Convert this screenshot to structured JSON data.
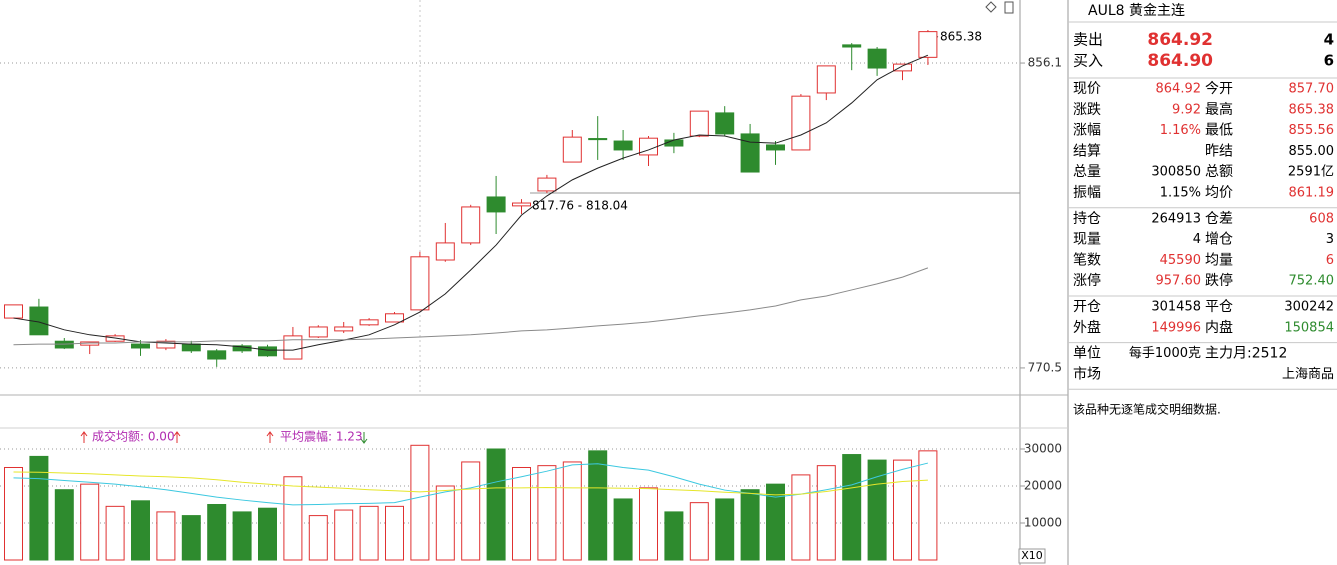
{
  "chart_data": [
    {
      "type": "candlestick",
      "open": [
        784.5,
        787.6,
        778.0,
        776.9,
        778.0,
        777.2,
        776.1,
        777.2,
        775.3,
        776.7,
        776.4,
        773.0,
        779.2,
        780.9,
        782.6,
        783.4,
        786.8,
        800.8,
        805.6,
        818.5,
        816.0,
        820.2,
        828.3,
        834.9,
        834.2,
        830.3,
        834.5,
        835.6,
        842.1,
        836.2,
        833.1,
        831.7,
        847.7,
        861.2,
        860.0,
        853.9,
        857.7
      ],
      "high": [
        788.2,
        789.9,
        778.9,
        777.8,
        780.0,
        778.3,
        778.6,
        778.1,
        775.8,
        777.2,
        777.0,
        782.0,
        782.5,
        783.4,
        784.5,
        786.2,
        803.1,
        811.2,
        816.3,
        824.4,
        817.9,
        824.7,
        837.3,
        841.2,
        837.3,
        835.6,
        836.5,
        842.6,
        844.0,
        839.0,
        834.2,
        847.4,
        855.3,
        861.7,
        860.6,
        855.8,
        865.38
      ],
      "low": [
        784.5,
        779.8,
        775.8,
        774.4,
        777.8,
        773.9,
        775.5,
        774.7,
        770.8,
        774.7,
        773.6,
        773.0,
        778.9,
        780.3,
        782.3,
        783.4,
        786.8,
        800.3,
        805.0,
        808.1,
        813.7,
        819.6,
        828.3,
        828.9,
        828.9,
        827.2,
        830.8,
        835.3,
        835.6,
        825.5,
        827.5,
        831.7,
        845.7,
        854.1,
        852.5,
        851.3,
        855.56
      ],
      "close": [
        788.2,
        779.8,
        776.1,
        777.8,
        779.5,
        776.1,
        778.0,
        775.3,
        773.0,
        775.3,
        773.9,
        779.5,
        782.0,
        782.0,
        784.0,
        785.7,
        801.7,
        805.6,
        815.7,
        814.3,
        816.8,
        823.8,
        835.3,
        834.6,
        831.7,
        835.0,
        832.8,
        842.6,
        836.2,
        825.5,
        831.7,
        846.8,
        855.3,
        860.6,
        854.7,
        855.8,
        864.92
      ],
      "up_color": "#e03131",
      "down_color": "#2e8b2e",
      "lines": [
        {
          "color": "#222222",
          "values": [
            784.5,
            783.4,
            781.2,
            779.8,
            778.9,
            777.8,
            777.5,
            777.2,
            777.0,
            776.4,
            775.5,
            775.5,
            777.0,
            778.3,
            779.8,
            782.6,
            786.2,
            791.3,
            798.0,
            805.0,
            813.4,
            818.8,
            823.3,
            826.6,
            829.4,
            831.7,
            834.5,
            835.9,
            835.6,
            833.9,
            833.6,
            835.9,
            839.3,
            844.9,
            851.4,
            855.3,
            858.3
          ]
        },
        {
          "color": "#8a8a8a",
          "values": [
            777.0,
            777.2,
            777.2,
            777.5,
            777.5,
            777.8,
            777.8,
            777.8,
            778.1,
            778.1,
            778.1,
            778.4,
            778.4,
            778.4,
            778.6,
            778.9,
            779.2,
            779.5,
            779.8,
            780.3,
            780.9,
            781.2,
            781.7,
            782.3,
            782.8,
            783.4,
            784.2,
            785.1,
            785.9,
            786.8,
            787.9,
            789.6,
            790.7,
            792.4,
            794.1,
            796.0,
            798.6
          ]
        }
      ],
      "ylim": [
        762.9,
        873.8
      ],
      "yticks": [
        770.5,
        856.1
      ],
      "annotations": [
        "865.38",
        "817.76 - 818.04"
      ]
    },
    {
      "type": "bar",
      "values": [
        25000,
        28000,
        19000,
        20500,
        14500,
        16000,
        13000,
        12000,
        15000,
        13000,
        14000,
        22500,
        12000,
        13500,
        14500,
        14500,
        31000,
        20000,
        26500,
        30000,
        25000,
        25500,
        26500,
        29500,
        16500,
        19500,
        13000,
        15500,
        16500,
        19000,
        20500,
        23000,
        25500,
        28500,
        27000,
        27000,
        29500
      ],
      "lines": [
        {
          "color": "#3cc8e0",
          "values": [
            22200,
            22000,
            21500,
            21000,
            20500,
            19800,
            19000,
            18000,
            17000,
            16200,
            15500,
            14900,
            15000,
            15200,
            15300,
            15500,
            17000,
            18400,
            19500,
            21100,
            22500,
            24000,
            25700,
            26000,
            25000,
            24300,
            22500,
            20500,
            18900,
            18000,
            17000,
            17800,
            19000,
            20300,
            22500,
            24500,
            26200
          ]
        },
        {
          "color": "#e6e62a",
          "values": [
            23800,
            23700,
            23500,
            23300,
            23000,
            22700,
            22500,
            22200,
            21700,
            21000,
            20500,
            20000,
            19700,
            19400,
            19000,
            18700,
            18400,
            18800,
            19200,
            19500,
            19500,
            19600,
            19500,
            19500,
            19400,
            19300,
            19000,
            18700,
            18300,
            18000,
            17600,
            17800,
            18500,
            19500,
            20500,
            21200,
            21600
          ]
        }
      ],
      "ylim": [
        0,
        35135
      ],
      "yticks": [
        10000,
        20000,
        30000
      ],
      "annotations": [
        "成交均额: 0.00",
        "平均震幅: 1.23"
      ],
      "scale_label": "X10"
    }
  ],
  "quote": {
    "title": "AUL8 黄金主连",
    "book": [
      {
        "label": "卖出",
        "price": "864.92",
        "qty": "4"
      },
      {
        "label": "买入",
        "price": "864.90",
        "qty": "6"
      }
    ],
    "sections": [
      [
        {
          "l": "现价",
          "v": "864.92",
          "c": "#e03131",
          "l2": "今开",
          "v2": "857.70",
          "c2": "#e03131"
        },
        {
          "l": "涨跌",
          "v": "9.92",
          "c": "#e03131",
          "l2": "最高",
          "v2": "865.38",
          "c2": "#e03131"
        },
        {
          "l": "涨幅",
          "v": "1.16%",
          "c": "#e03131",
          "l2": "最低",
          "v2": "855.56",
          "c2": "#e03131"
        },
        {
          "l": "结算",
          "v": "",
          "c": "#000000",
          "l2": "昨结",
          "v2": "855.00",
          "c2": "#000000"
        },
        {
          "l": "总量",
          "v": "300850",
          "c": "#000000",
          "l2": "总额",
          "v2": "2591亿",
          "c2": "#000000"
        },
        {
          "l": "振幅",
          "v": "1.15%",
          "c": "#000000",
          "l2": "均价",
          "v2": "861.19",
          "c2": "#e03131"
        }
      ],
      [
        {
          "l": "持仓",
          "v": "264913",
          "c": "#000000",
          "l2": "仓差",
          "v2": "608",
          "c2": "#e03131"
        },
        {
          "l": "现量",
          "v": "4",
          "c": "#000000",
          "l2": "增仓",
          "v2": "3",
          "c2": "#000000"
        },
        {
          "l": "笔数",
          "v": "45590",
          "c": "#e03131",
          "l2": "均量",
          "v2": "6",
          "c2": "#e03131"
        },
        {
          "l": "涨停",
          "v": "957.60",
          "c": "#e03131",
          "l2": "跌停",
          "v2": "752.40",
          "c2": "#2e8b2e"
        }
      ],
      [
        {
          "l": "开仓",
          "v": "301458",
          "c": "#000000",
          "l2": "平仓",
          "v2": "300242",
          "c2": "#000000"
        },
        {
          "l": "外盘",
          "v": "149996",
          "c": "#e03131",
          "l2": "内盘",
          "v2": "150854",
          "c2": "#2e8b2e"
        }
      ],
      [
        {
          "l": "单位",
          "v": "每手1000克",
          "c": "#000000",
          "l2": "主力月:2512",
          "v2": "",
          "c2": "#000000"
        },
        {
          "l": "市场",
          "v": "",
          "c": "#000000",
          "l2": "",
          "v2": "上海商品",
          "c2": "#000000"
        }
      ]
    ],
    "footer": "该品种无逐笔成交明细数据."
  }
}
